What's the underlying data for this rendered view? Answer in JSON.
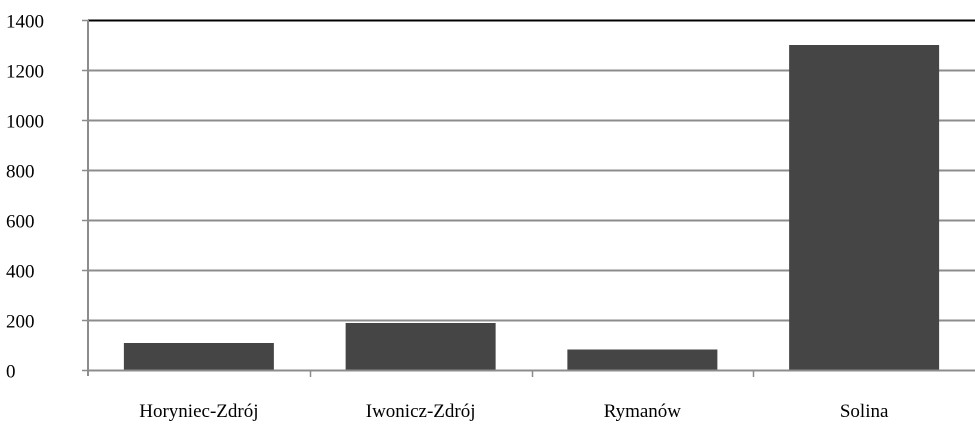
{
  "chart_data": {
    "type": "bar",
    "categories": [
      "Horyniec-Zdrój",
      "Iwonicz-Zdrój",
      "Rymanów",
      "Solina"
    ],
    "values": [
      108,
      188,
      82,
      1300
    ],
    "ylim": [
      0,
      1400
    ],
    "yticks": [
      0,
      200,
      400,
      600,
      800,
      1000,
      1200,
      1400
    ],
    "grid": true,
    "legend": "none",
    "colors": {
      "bar": "#454545",
      "grid": "#8c8c8c",
      "axis": "#8c8c8c",
      "top_border": "#000000"
    }
  }
}
